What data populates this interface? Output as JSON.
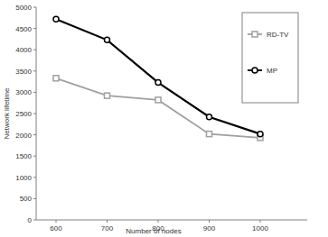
{
  "chart_data": {
    "type": "line",
    "x_label": "Number of nodes",
    "y_label": "Network lifetime",
    "categories": [
      "600",
      "700",
      "800",
      "900",
      "1000"
    ],
    "series": [
      {
        "name": "RD-TV",
        "color": "#a0a0a0",
        "marker": "square",
        "line_style": "solid",
        "values": [
          3330,
          2920,
          2820,
          2020,
          1930
        ]
      },
      {
        "name": "MP",
        "color": "#000000",
        "marker": "circle",
        "line_style": "solid",
        "values": [
          4720,
          4230,
          3230,
          2420,
          2020
        ]
      }
    ],
    "ylim": [
      0,
      5000
    ],
    "yticks": [
      0,
      500,
      1000,
      1500,
      2000,
      2500,
      3000,
      3500,
      4000,
      4500,
      5000
    ],
    "grid": false,
    "legend": "upper right"
  }
}
